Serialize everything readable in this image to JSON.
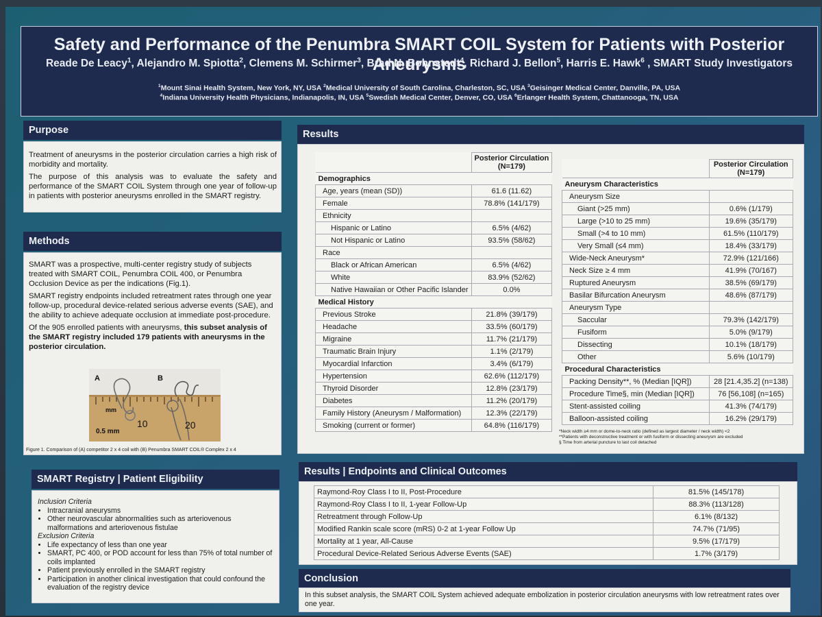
{
  "header": {
    "title": "Safety and Performance of the Penumbra SMART COIL System for Patients with Posterior Aneurysms",
    "authors": [
      {
        "name": "Reade De Leacy",
        "sup": "1"
      },
      {
        "name": "Alejandro M. Spiotta",
        "sup": "2"
      },
      {
        "name": "Clemens M. Schirmer",
        "sup": "3"
      },
      {
        "name": "Brad N. Bohnstedt",
        "sup": "4"
      },
      {
        "name": "Richard J. Bellon",
        "sup": "5"
      },
      {
        "name": "Harris E. Hawk",
        "sup": "6"
      }
    ],
    "authors_tail": " , SMART Study Investigators",
    "affiliations_line1": [
      {
        "sup": "1",
        "text": "Mount Sinai Health System, New York, NY, USA "
      },
      {
        "sup": "2",
        "text": "Medical University of South Carolina, Charleston, SC, USA "
      },
      {
        "sup": "3",
        "text": "Geisinger Medical Center, Danville, PA, USA"
      }
    ],
    "affiliations_line2": [
      {
        "sup": "4",
        "text": "Indiana University Health Physicians, Indianapolis, IN, USA "
      },
      {
        "sup": "5",
        "text": "Swedish Medical Center, Denver, CO, USA "
      },
      {
        "sup": "6",
        "text": "Erlanger Health System, Chattanooga, TN, USA"
      }
    ]
  },
  "purpose": {
    "heading": "Purpose",
    "paragraphs": [
      "Treatment of aneurysms in the posterior circulation carries a high risk of morbidity and mortality.",
      "The purpose of this analysis was to evaluate the safety and performance of the SMART COIL System through one year of follow-up in patients with posterior aneurysms enrolled in the SMART registry."
    ]
  },
  "methods": {
    "heading": "Methods",
    "p1": "SMART was a prospective, multi-center registry study of subjects treated with SMART COIL, Penumbra COIL 400, or Penumbra Occlusion Device as per the indications (Fig.1).",
    "p2": "SMART registry endpoints included retreatment rates through one year follow-up, procedural device-related serious adverse events (SAE), and the ability to achieve adequate occlusion at immediate post-procedure.",
    "p3_plain": "Of the 905 enrolled patients with aneurysms, ",
    "p3_bold": "this subset analysis of the SMART registry included 179 patients with aneurysms in the posterior circulation.",
    "figure": {
      "label_a": "A",
      "label_b": "B",
      "ruler_unit": "mm",
      "ruler_10": "10",
      "ruler_20": "20",
      "ruler_note": "0.5 mm",
      "caption": "Figure 1.  Comparison of (A) competitor 2 x 4 coil with (B) Penumbra SMART COIL® Complex 2 x 4"
    }
  },
  "eligibility": {
    "heading": "SMART Registry | Patient Eligibility",
    "inclusion_title": "Inclusion Criteria",
    "inclusion": [
      "Intracranial aneurysms",
      "Other neurovascular abnormalities such as arteriovenous malformations and arteriovenous fistulae"
    ],
    "exclusion_title": "Exclusion Criteria",
    "exclusion": [
      "Life expectancy of less than one year",
      "SMART, PC 400, or POD account for less than 75% of total number of coils implanted",
      "Patient previously enrolled in the SMART registry",
      "Participation in another clinical investigation that could confound the evaluation of the registry device"
    ]
  },
  "results": {
    "heading": "Results",
    "col_header_line1": "Posterior Circulation",
    "col_header_line2": "(N=179)",
    "left_table": [
      {
        "type": "section",
        "label": "Demographics"
      },
      {
        "type": "row",
        "indent": 1,
        "label": "Age, years (mean (SD))",
        "value": "61.6 (11.62)"
      },
      {
        "type": "row",
        "indent": 1,
        "label": "Female",
        "value": "78.8% (141/179)"
      },
      {
        "type": "row",
        "indent": 1,
        "label": "Ethnicity",
        "value": ""
      },
      {
        "type": "row",
        "indent": 2,
        "label": "Hispanic or Latino",
        "value": "6.5% (4/62)"
      },
      {
        "type": "row",
        "indent": 2,
        "label": "Not Hispanic or Latino",
        "value": "93.5% (58/62)"
      },
      {
        "type": "row",
        "indent": 1,
        "label": "Race",
        "value": ""
      },
      {
        "type": "row",
        "indent": 2,
        "label": "Black or African American",
        "value": "6.5% (4/62)"
      },
      {
        "type": "row",
        "indent": 2,
        "label": "White",
        "value": "83.9% (52/62)"
      },
      {
        "type": "row",
        "indent": 2,
        "label": "Native Hawaiian or Other Pacific Islander",
        "value": "0.0%"
      },
      {
        "type": "section",
        "label": "Medical History"
      },
      {
        "type": "row",
        "indent": 1,
        "label": "Previous Stroke",
        "value": "21.8% (39/179)"
      },
      {
        "type": "row",
        "indent": 1,
        "label": "Headache",
        "value": "33.5% (60/179)"
      },
      {
        "type": "row",
        "indent": 1,
        "label": "Migraine",
        "value": "11.7% (21/179)"
      },
      {
        "type": "row",
        "indent": 1,
        "label": "Traumatic Brain Injury",
        "value": "1.1% (2/179)"
      },
      {
        "type": "row",
        "indent": 1,
        "label": "Myocardial Infarction",
        "value": "3.4% (6/179)"
      },
      {
        "type": "row",
        "indent": 1,
        "label": "Hypertension",
        "value": "62.6% (112/179)"
      },
      {
        "type": "row",
        "indent": 1,
        "label": "Thyroid Disorder",
        "value": "12.8% (23/179)"
      },
      {
        "type": "row",
        "indent": 1,
        "label": "Diabetes",
        "value": "11.2% (20/179)"
      },
      {
        "type": "row",
        "indent": 1,
        "label": "Family History (Aneurysm / Malformation)",
        "value": "12.3% (22/179)"
      },
      {
        "type": "row",
        "indent": 1,
        "label": "Smoking (current or former)",
        "value": "64.8% (116/179)"
      }
    ],
    "right_table": [
      {
        "type": "section",
        "label": "Aneurysm Characteristics"
      },
      {
        "type": "row",
        "indent": 1,
        "label": "Aneurysm Size",
        "value": ""
      },
      {
        "type": "row",
        "indent": 2,
        "label": "Giant (>25 mm)",
        "value": "0.6% (1/179)"
      },
      {
        "type": "row",
        "indent": 2,
        "label": "Large (>10 to 25 mm)",
        "value": "19.6% (35/179)"
      },
      {
        "type": "row",
        "indent": 2,
        "label": "Small (>4 to 10 mm)",
        "value": "61.5% (110/179)"
      },
      {
        "type": "row",
        "indent": 2,
        "label": "Very Small (≤4 mm)",
        "value": "18.4% (33/179)"
      },
      {
        "type": "row",
        "indent": 1,
        "label": "Wide-Neck Aneurysm*",
        "value": "72.9% (121/166)"
      },
      {
        "type": "row",
        "indent": 1,
        "label": "Neck Size ≥ 4 mm",
        "value": "41.9% (70/167)"
      },
      {
        "type": "row",
        "indent": 1,
        "label": "Ruptured Aneurysm",
        "value": "38.5% (69/179)"
      },
      {
        "type": "row",
        "indent": 1,
        "label": "Basilar Bifurcation Aneurysm",
        "value": "48.6% (87/179)"
      },
      {
        "type": "row",
        "indent": 1,
        "label": "Aneurysm Type",
        "value": ""
      },
      {
        "type": "row",
        "indent": 2,
        "label": "Saccular",
        "value": "79.3% (142/179)"
      },
      {
        "type": "row",
        "indent": 2,
        "label": "Fusiform",
        "value": "5.0% (9/179)"
      },
      {
        "type": "row",
        "indent": 2,
        "label": "Dissecting",
        "value": "10.1% (18/179)"
      },
      {
        "type": "row",
        "indent": 2,
        "label": "Other",
        "value": "5.6% (10/179)"
      },
      {
        "type": "section",
        "label": "Procedural Characteristics"
      },
      {
        "type": "row",
        "indent": 1,
        "label": "Packing Density**, % (Median [IQR])",
        "value": "28 [21.4,35.2] (n=138)"
      },
      {
        "type": "row",
        "indent": 1,
        "label": "Procedure Time§, min (Median [IQR])",
        "value": "76 [56,108] (n=165)"
      },
      {
        "type": "row",
        "indent": 1,
        "label": "Stent-assisted coiling",
        "value": "41.3% (74/179)"
      },
      {
        "type": "row",
        "indent": 1,
        "label": "Balloon-assisted coiling",
        "value": "16.2% (29/179)"
      }
    ],
    "footnotes": [
      "*Neck width ≥4 mm or dome-to-neck ratio (defined as largest diameter / neck width) <2",
      "**Patients with deconstructive treatment or with fusiform or dissecting aneurysm are excluded",
      "§ Time from arterial puncture to last coil detached"
    ]
  },
  "endpoints": {
    "heading": "Results | Endpoints and Clinical Outcomes",
    "rows": [
      {
        "label": "Raymond-Roy Class I to II, Post-Procedure",
        "value": "81.5% (145/178)"
      },
      {
        "label": "Raymond-Roy Class I to II, 1-year Follow-Up",
        "value": "88.3% (113/128)"
      },
      {
        "label": "Retreatment through Follow-Up",
        "value": "6.1% (8/132)"
      },
      {
        "label": "Modified Rankin scale score (mRS) 0-2 at 1-year Follow Up",
        "value": "74.7% (71/95)"
      },
      {
        "label": "Mortality at 1 year, All-Cause",
        "value": "9.5% (17/179)"
      },
      {
        "label": "Procedural Device-Related Serious Adverse Events (SAE)",
        "value": "1.7% (3/179)"
      }
    ]
  },
  "conclusion": {
    "heading": "Conclusion",
    "text": "In this subset analysis, the SMART COIL System achieved adequate embolization in posterior circulation aneurysms with low retreatment rates over one year."
  }
}
